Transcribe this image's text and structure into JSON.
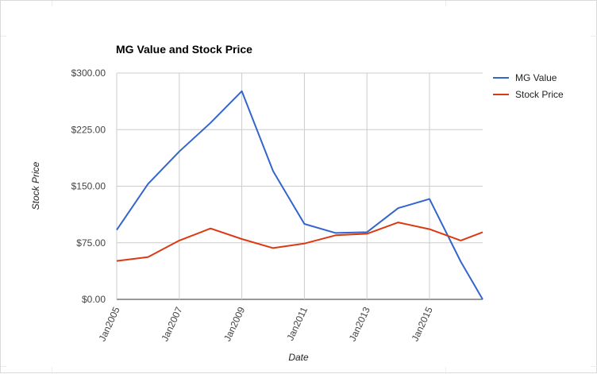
{
  "chart_data": {
    "type": "line",
    "title": "MG Value and Stock Price",
    "xlabel": "Date",
    "ylabel": "Stock Price",
    "x": [
      2005,
      2006,
      2007,
      2008,
      2009,
      2010,
      2011,
      2012,
      2013,
      2014,
      2015,
      2016,
      2016.7
    ],
    "x_tick_labels": [
      "Jan2005",
      "Jan2007",
      "Jan2009",
      "Jan2011",
      "Jan2013",
      "Jan2015"
    ],
    "x_tick_values": [
      2005,
      2007,
      2009,
      2011,
      2013,
      2015
    ],
    "xlim": [
      2005,
      2016.7
    ],
    "ylim": [
      0,
      300
    ],
    "y_ticks": [
      0,
      75,
      150,
      225,
      300
    ],
    "y_tick_labels": [
      "$0.00",
      "$75.00",
      "$150.00",
      "$225.00",
      "$300.00"
    ],
    "grid": true,
    "legend_position": "right",
    "series": [
      {
        "name": "MG Value",
        "color": "#3366cc",
        "values": [
          92,
          153,
          196,
          234,
          276,
          170,
          100,
          88,
          89,
          121,
          133,
          50,
          0
        ]
      },
      {
        "name": "Stock Price",
        "color": "#dc3912",
        "values": [
          51,
          56,
          78,
          94,
          80,
          68,
          74,
          85,
          87,
          102,
          93,
          78,
          89
        ]
      }
    ]
  }
}
